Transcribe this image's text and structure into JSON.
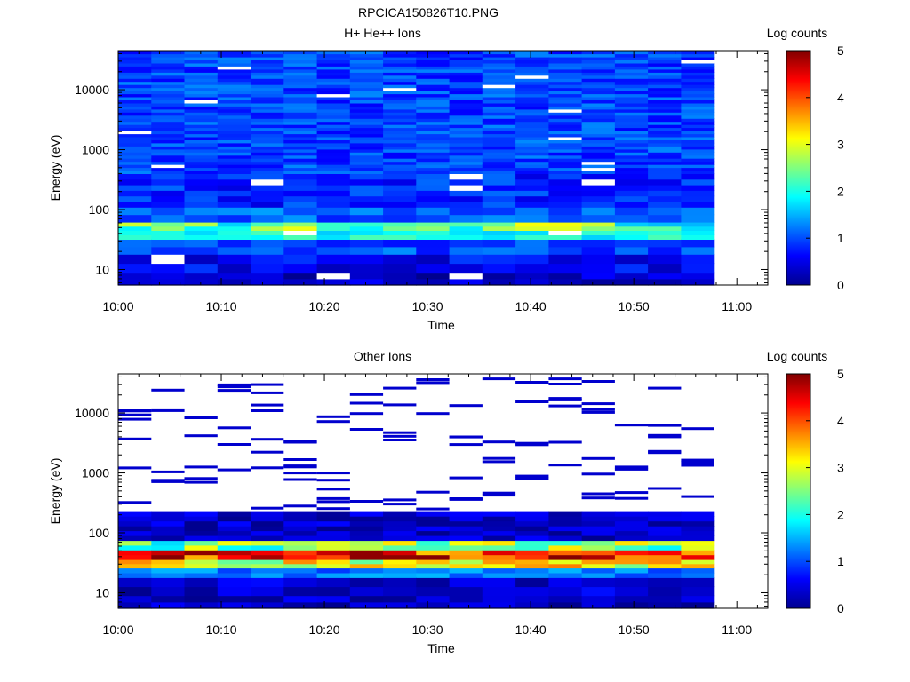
{
  "figure_title": "RPCICA150826T10.PNG",
  "chart_data": [
    {
      "type": "heatmap",
      "title": "H+ He++ Ions",
      "xlabel": "Time",
      "ylabel": "Energy (eV)",
      "x_ticks": [
        "10:00",
        "10:10",
        "10:20",
        "10:30",
        "10:40",
        "10:50",
        "11:00"
      ],
      "xlim": [
        "10:00",
        "11:03"
      ],
      "y_scale": "log",
      "y_ticks": [
        "10",
        "100",
        "1000",
        "10000"
      ],
      "ylim": [
        5.5,
        45000
      ],
      "colorbar_label": "Log counts",
      "colorbar_ticks": [
        "0",
        "1",
        "2",
        "3",
        "4",
        "5"
      ],
      "colorbar_range": [
        0,
        5
      ],
      "time_start_min": 0,
      "time_end_min": 57.8,
      "time_bins": 18,
      "bands": [
        {
          "from": 5.5,
          "to": 9,
          "value": 0.3
        },
        {
          "from": 9,
          "to": 18,
          "value": 0.6
        },
        {
          "from": 18,
          "to": 32,
          "value": 1.0
        },
        {
          "from": 32,
          "to": 45,
          "value": 1.9
        },
        {
          "from": 45,
          "to": 62,
          "value": 2.3
        },
        {
          "from": 62,
          "to": 110,
          "value": 1.1
        },
        {
          "from": 110,
          "to": 400,
          "value": 0.8
        },
        {
          "from": 400,
          "to": 45000,
          "value": 0.95
        }
      ]
    },
    {
      "type": "heatmap",
      "title": "Other Ions",
      "xlabel": "Time",
      "ylabel": "Energy (eV)",
      "x_ticks": [
        "10:00",
        "10:10",
        "10:20",
        "10:30",
        "10:40",
        "10:50",
        "11:00"
      ],
      "xlim": [
        "10:00",
        "11:03"
      ],
      "y_scale": "log",
      "y_ticks": [
        "10",
        "100",
        "1000",
        "10000"
      ],
      "ylim": [
        5.5,
        45000
      ],
      "colorbar_label": "Log counts",
      "colorbar_ticks": [
        "0",
        "1",
        "2",
        "3",
        "4",
        "5"
      ],
      "colorbar_range": [
        0,
        5
      ],
      "time_start_min": 0,
      "time_end_min": 57.8,
      "time_bins": 18,
      "bands": [
        {
          "from": 5.5,
          "to": 9,
          "value": 0.3
        },
        {
          "from": 9,
          "to": 18,
          "value": 0.35
        },
        {
          "from": 18,
          "to": 26,
          "value": 1.2
        },
        {
          "from": 26,
          "to": 36,
          "value": 3.0
        },
        {
          "from": 36,
          "to": 52,
          "value": 4.2
        },
        {
          "from": 52,
          "to": 75,
          "value": 2.5
        },
        {
          "from": 75,
          "to": 230,
          "value": 0.3
        }
      ],
      "sparse_lines": "above 230 eV: scattered single-bin dark-blue entries (≈0.3), otherwise white"
    }
  ]
}
